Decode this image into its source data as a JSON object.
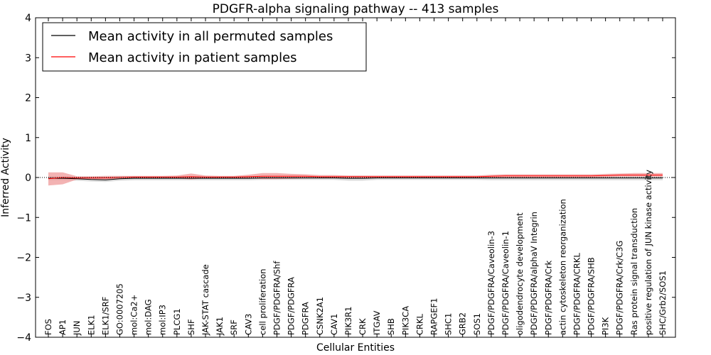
{
  "chart_data": {
    "type": "line",
    "title": "PDGFR-alpha signaling pathway -- 413 samples",
    "xlabel": "Cellular Entities",
    "ylabel": "Inferred Activity",
    "ylim": [
      -4,
      4
    ],
    "yticks": [
      -4,
      -3,
      -2,
      -1,
      0,
      1,
      2,
      3,
      4
    ],
    "ytick_labels": [
      "−4",
      "−3",
      "−2",
      "−1",
      "0",
      "1",
      "2",
      "3",
      "4"
    ],
    "grid": false,
    "legend_position": "top-left",
    "categories": [
      "FOS",
      "AP1",
      "JUN",
      "ELK1",
      "ELK1/SRF",
      "GO:0007205",
      "mol:Ca2+",
      "mol:DAG",
      "mol:IP3",
      "PLCG1",
      "SHF",
      "JAK-STAT cascade",
      "JAK1",
      "SRF",
      "CAV3",
      "cell proliferation",
      "PDGF/PDGFRA/Shf",
      "PDGF/PDGFRA",
      "PDGFRA",
      "CSNK2A1",
      "CAV1",
      "PIK3R1",
      "CRK",
      "ITGAV",
      "SHB",
      "PIK3CA",
      "CRKL",
      "RAPGEF1",
      "SHC1",
      "GRB2",
      "SOS1",
      "PDGF/PDGFRA/Caveolin-3",
      "PDGF/PDGFRA/Caveolin-1",
      "oligodendrocyte development",
      "PDGF/PDGFRA/alphaV Integrin",
      "PDGF/PDGFRA/Crk",
      "actin cytoskeleton reorganization",
      "PDGF/PDGFRA/CRKL",
      "PDGF/PDGFRA/SHB",
      "PI3K",
      "PDGF/PDGFRA/Crk/C3G",
      "Ras protein signal transduction",
      "positive regulation of JUN kinase activity",
      "SHC/Grb2/SOS1"
    ],
    "series": [
      {
        "name": "Mean activity in all permuted samples",
        "color": "#000000",
        "values": [
          -0.02,
          -0.02,
          -0.03,
          -0.05,
          -0.06,
          -0.03,
          -0.02,
          -0.02,
          -0.02,
          -0.02,
          -0.02,
          -0.02,
          -0.02,
          -0.02,
          -0.02,
          -0.01,
          -0.01,
          -0.01,
          -0.01,
          -0.01,
          -0.01,
          -0.02,
          -0.02,
          -0.01,
          -0.01,
          -0.01,
          -0.01,
          -0.01,
          -0.01,
          -0.01,
          -0.01,
          -0.01,
          -0.01,
          -0.01,
          -0.01,
          -0.01,
          -0.01,
          -0.01,
          -0.01,
          -0.01,
          -0.01,
          -0.01,
          -0.01,
          -0.01
        ],
        "band": {
          "color": "#cccccc",
          "upper": [
            0.03,
            0.03,
            0.02,
            0.02,
            0.02,
            0.03,
            0.03,
            0.03,
            0.03,
            0.03,
            0.03,
            0.03,
            0.03,
            0.03,
            0.03,
            0.04,
            0.04,
            0.04,
            0.04,
            0.04,
            0.04,
            0.04,
            0.04,
            0.04,
            0.04,
            0.04,
            0.04,
            0.04,
            0.04,
            0.04,
            0.04,
            0.04,
            0.04,
            0.04,
            0.04,
            0.04,
            0.04,
            0.04,
            0.04,
            0.04,
            0.04,
            0.04,
            0.04,
            0.04
          ],
          "lower": [
            -0.07,
            -0.07,
            -0.08,
            -0.1,
            -0.11,
            -0.08,
            -0.07,
            -0.07,
            -0.07,
            -0.07,
            -0.07,
            -0.07,
            -0.07,
            -0.07,
            -0.07,
            -0.06,
            -0.06,
            -0.06,
            -0.06,
            -0.06,
            -0.06,
            -0.08,
            -0.08,
            -0.06,
            -0.06,
            -0.06,
            -0.06,
            -0.06,
            -0.06,
            -0.06,
            -0.06,
            -0.07,
            -0.07,
            -0.07,
            -0.07,
            -0.07,
            -0.07,
            -0.07,
            -0.07,
            -0.07,
            -0.07,
            -0.07,
            -0.07,
            -0.07
          ]
        }
      },
      {
        "name": "Mean activity in patient samples",
        "color": "#ff0000",
        "values": [
          -0.03,
          0.0,
          -0.01,
          -0.01,
          -0.01,
          0.0,
          0.01,
          0.01,
          0.01,
          0.01,
          0.02,
          0.01,
          0.01,
          0.01,
          0.02,
          0.03,
          0.03,
          0.03,
          0.03,
          0.02,
          0.02,
          0.02,
          0.02,
          0.02,
          0.02,
          0.02,
          0.02,
          0.02,
          0.02,
          0.02,
          0.02,
          0.03,
          0.04,
          0.04,
          0.04,
          0.04,
          0.04,
          0.04,
          0.04,
          0.05,
          0.06,
          0.06,
          0.06,
          0.06
        ],
        "band": {
          "color": "#ef9a9a",
          "upper": [
            0.13,
            0.13,
            0.03,
            0.03,
            0.04,
            0.04,
            0.04,
            0.04,
            0.04,
            0.05,
            0.1,
            0.05,
            0.04,
            0.04,
            0.07,
            0.11,
            0.11,
            0.09,
            0.08,
            0.06,
            0.06,
            0.05,
            0.05,
            0.05,
            0.05,
            0.05,
            0.05,
            0.05,
            0.05,
            0.05,
            0.05,
            0.07,
            0.08,
            0.08,
            0.08,
            0.08,
            0.08,
            0.08,
            0.08,
            0.09,
            0.1,
            0.11,
            0.11,
            0.11
          ],
          "lower": [
            -0.2,
            -0.17,
            -0.05,
            -0.05,
            -0.05,
            -0.03,
            -0.02,
            -0.02,
            -0.02,
            -0.02,
            -0.05,
            -0.02,
            -0.02,
            -0.02,
            -0.02,
            -0.04,
            -0.04,
            -0.03,
            -0.02,
            -0.02,
            -0.02,
            -0.01,
            -0.01,
            -0.01,
            -0.01,
            -0.01,
            -0.01,
            -0.01,
            -0.01,
            -0.01,
            -0.01,
            -0.01,
            0.0,
            0.0,
            0.0,
            0.0,
            0.0,
            0.0,
            0.0,
            0.01,
            0.02,
            0.02,
            0.02,
            0.02
          ]
        }
      }
    ],
    "baseline_style": "dotted"
  }
}
